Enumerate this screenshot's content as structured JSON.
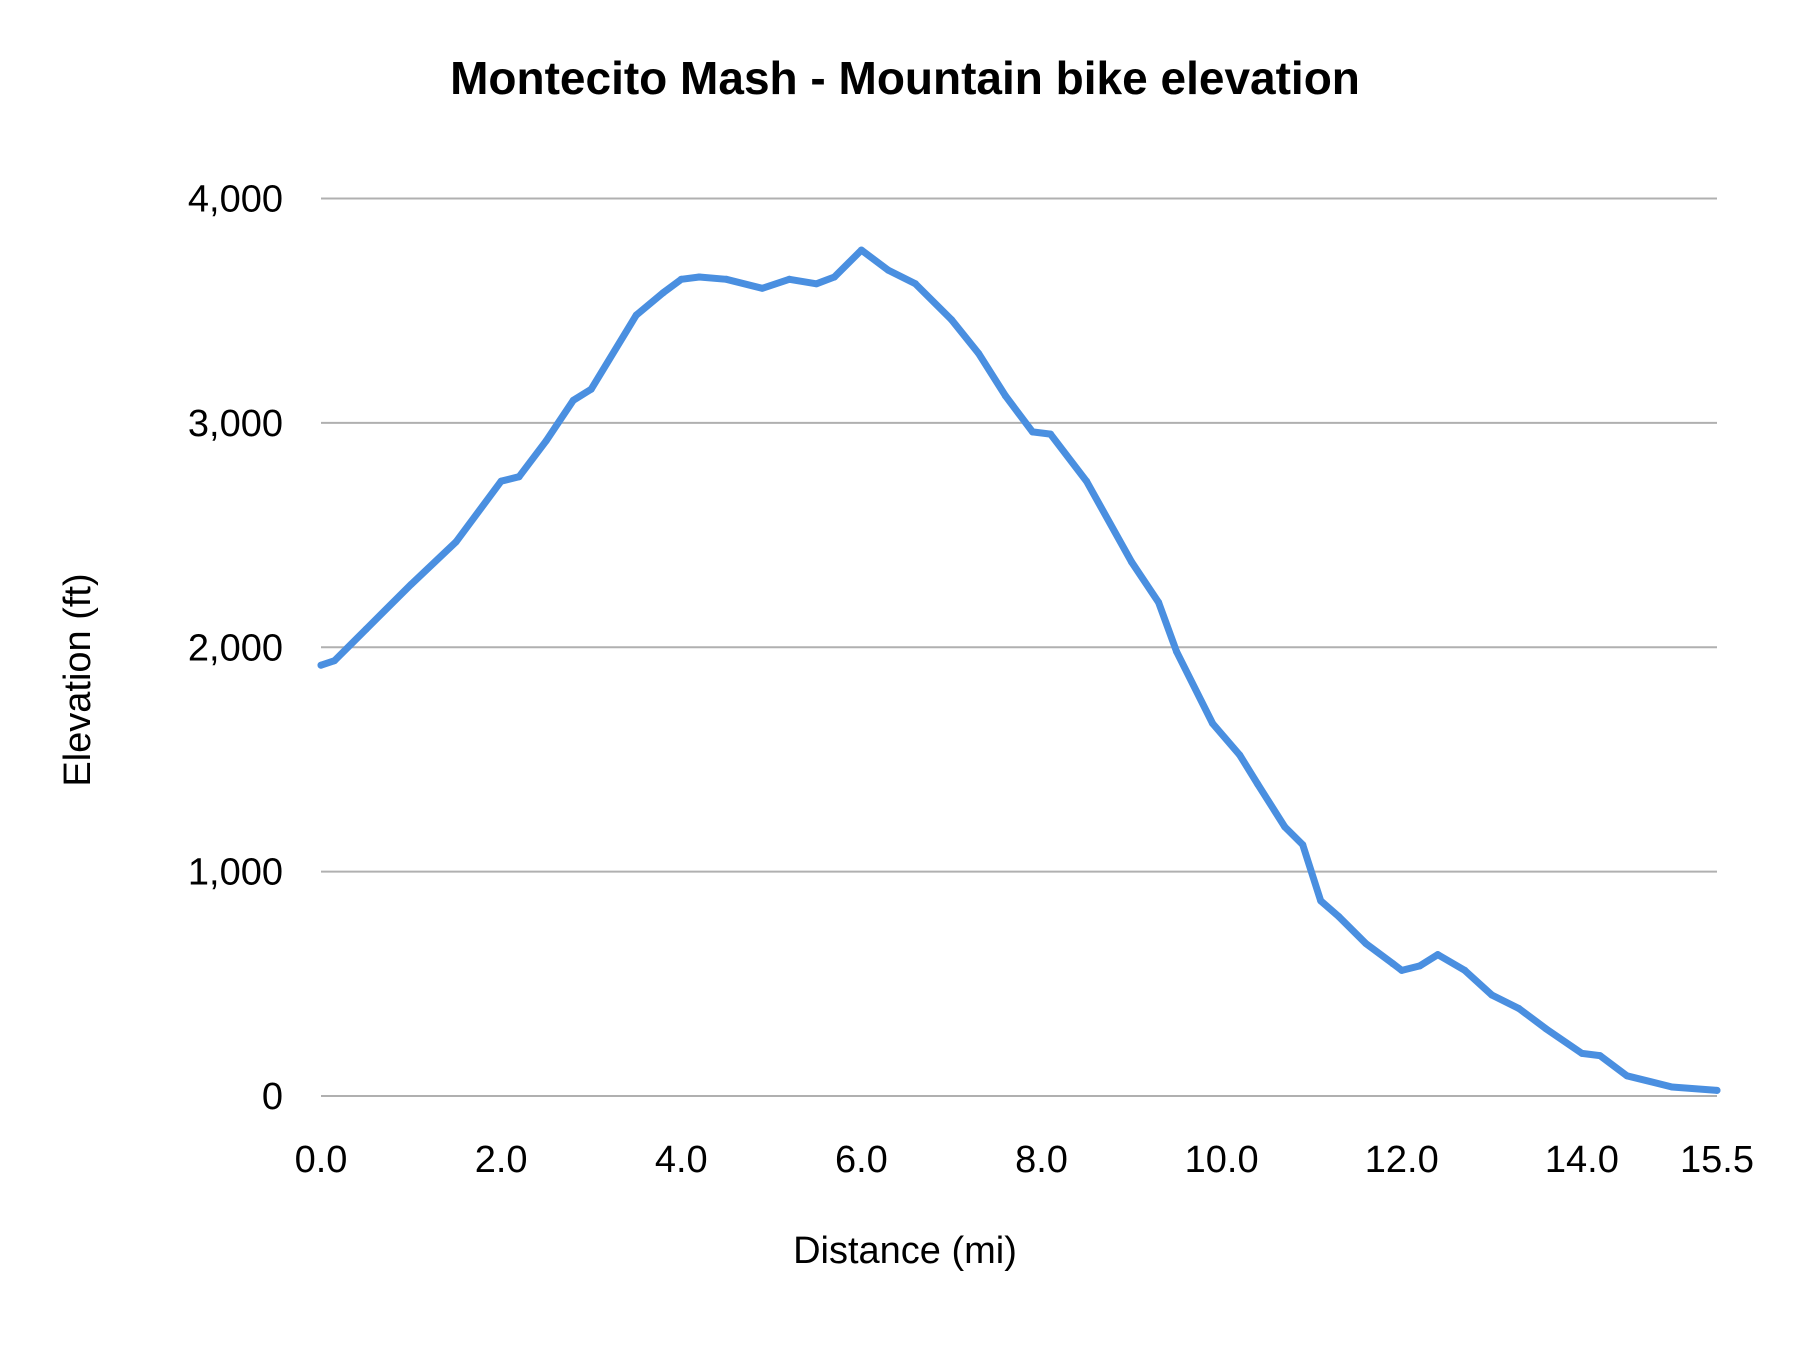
{
  "chart_data": {
    "type": "line",
    "title": "Montecito Mash - Mountain bike elevation",
    "xlabel": "Distance (mi)",
    "ylabel": "Elevation (ft)",
    "xlim": [
      0,
      15.5
    ],
    "ylim": [
      0,
      4000
    ],
    "x_ticks": [
      "0.0",
      "2.0",
      "4.0",
      "6.0",
      "8.0",
      "10.0",
      "12.0",
      "14.0",
      "15.5"
    ],
    "x_tick_values": [
      0,
      2,
      4,
      6,
      8,
      10,
      12,
      14,
      15.5
    ],
    "y_ticks": [
      "0",
      "1,000",
      "2,000",
      "3,000",
      "4,000"
    ],
    "y_tick_values": [
      0,
      1000,
      2000,
      3000,
      4000
    ],
    "grid": "horizontal",
    "legend": "none",
    "series": [
      {
        "color": "#4a8fe0",
        "x": [
          0,
          0.15,
          0.5,
          1.0,
          1.5,
          2.0,
          2.2,
          2.5,
          2.8,
          3.0,
          3.5,
          3.8,
          4.0,
          4.2,
          4.5,
          4.9,
          5.2,
          5.5,
          5.7,
          6.0,
          6.3,
          6.6,
          7.0,
          7.3,
          7.6,
          7.9,
          8.1,
          8.5,
          9.0,
          9.3,
          9.5,
          9.9,
          10.2,
          10.4,
          10.7,
          10.9,
          11.1,
          11.3,
          11.6,
          11.9,
          12.0,
          12.2,
          12.4,
          12.7,
          13.0,
          13.3,
          13.6,
          14.0,
          14.2,
          14.5,
          15.0,
          15.5
        ],
        "y": [
          1920,
          1940,
          2080,
          2280,
          2470,
          2740,
          2760,
          2920,
          3100,
          3150,
          3480,
          3580,
          3640,
          3650,
          3640,
          3600,
          3640,
          3620,
          3650,
          3770,
          3680,
          3620,
          3460,
          3310,
          3120,
          2960,
          2950,
          2740,
          2380,
          2200,
          1980,
          1660,
          1520,
          1390,
          1200,
          1120,
          870,
          800,
          680,
          590,
          560,
          580,
          630,
          560,
          450,
          390,
          300,
          190,
          180,
          90,
          40,
          25
        ]
      }
    ]
  }
}
